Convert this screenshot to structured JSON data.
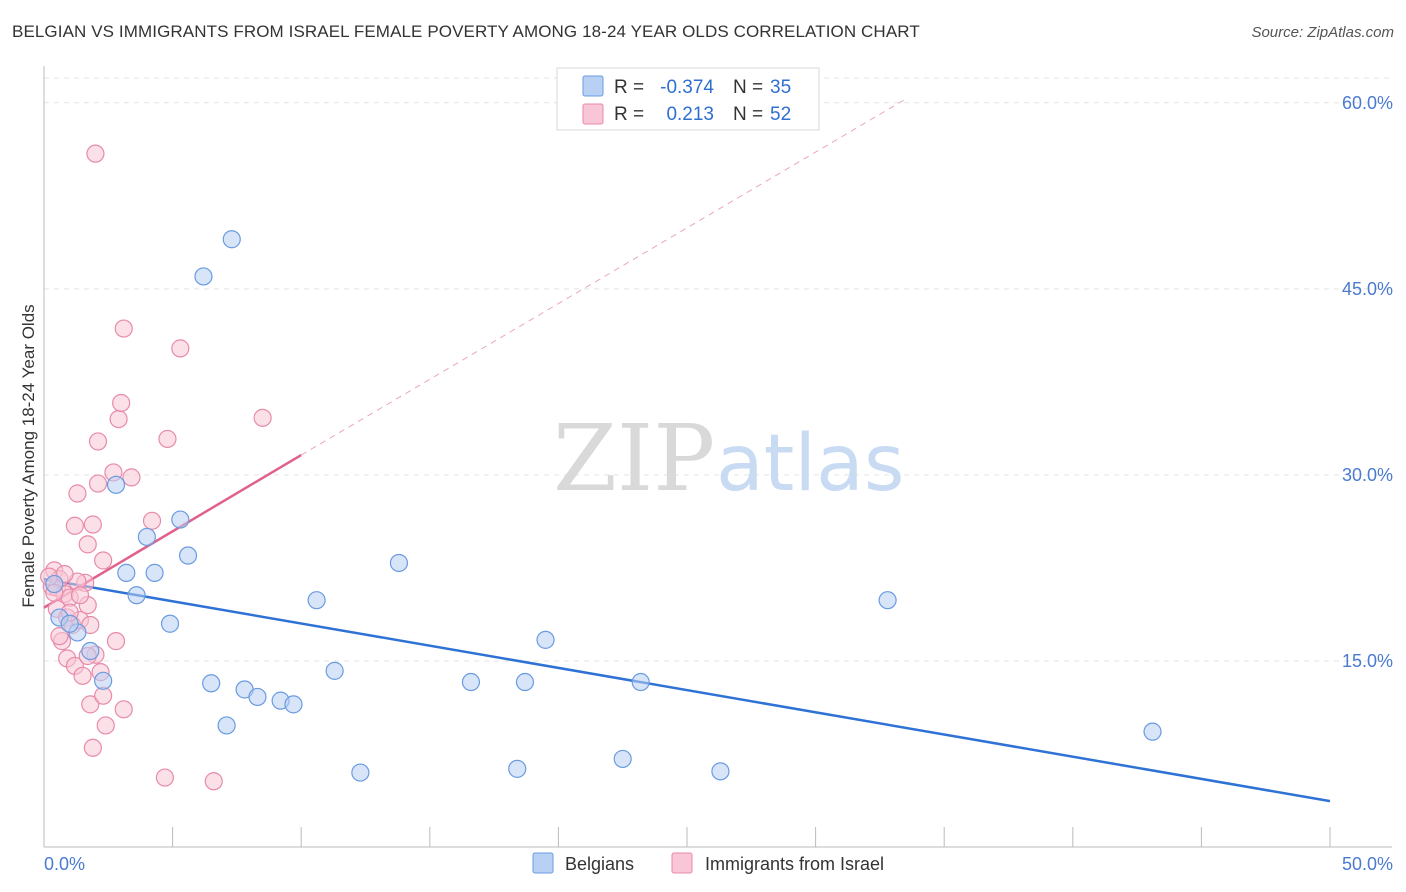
{
  "title": "BELGIAN VS IMMIGRANTS FROM ISRAEL FEMALE POVERTY AMONG 18-24 YEAR OLDS CORRELATION CHART",
  "source": "Source: ZipAtlas.com",
  "watermark": {
    "zip": "ZIP",
    "atlas": "atlas"
  },
  "colors": {
    "belgians_fill": "#b8d0f3",
    "belgians_stroke": "#6a9be0",
    "belgians_line": "#2f72d6",
    "israel_fill": "#f8c6d6",
    "israel_stroke": "#e88aaa",
    "israel_line": "#e0608e",
    "tick_text": "#4a7bd0"
  },
  "legend": {
    "rows": [
      {
        "r_label": "R =",
        "r_value": "-0.374",
        "n_label": "N =",
        "n_value": "35"
      },
      {
        "r_label": "R =",
        "r_value": "0.213",
        "n_label": "N =",
        "n_value": "52"
      }
    ]
  },
  "bottom_legend": [
    "Belgians",
    "Immigrants from Israel"
  ],
  "chart_data": {
    "type": "scatter",
    "title": "BELGIAN VS IMMIGRANTS FROM ISRAEL FEMALE POVERTY AMONG 18-24 YEAR OLDS CORRELATION CHART",
    "xlabel": "",
    "ylabel": "Female Poverty Among 18-24 Year Olds",
    "xlim": [
      0,
      50
    ],
    "ylim": [
      0,
      62
    ],
    "x_tick_labels": [
      "0.0%",
      "50.0%"
    ],
    "y_ticks": [
      15,
      30,
      45,
      60
    ],
    "y_tick_labels": [
      "15.0%",
      "30.0%",
      "45.0%",
      "60.0%"
    ],
    "grid": true,
    "series": [
      {
        "name": "Belgians",
        "points": [
          [
            0.4,
            21.2
          ],
          [
            0.6,
            18.5
          ],
          [
            1.3,
            17.3
          ],
          [
            1.8,
            15.8
          ],
          [
            2.3,
            13.4
          ],
          [
            2.8,
            29.2
          ],
          [
            3.2,
            22.1
          ],
          [
            3.6,
            20.3
          ],
          [
            4.0,
            25.0
          ],
          [
            4.3,
            22.1
          ],
          [
            4.9,
            18.0
          ],
          [
            5.3,
            26.4
          ],
          [
            5.6,
            23.5
          ],
          [
            6.2,
            46.0
          ],
          [
            6.5,
            13.2
          ],
          [
            7.1,
            9.8
          ],
          [
            7.3,
            49.0
          ],
          [
            7.8,
            12.7
          ],
          [
            8.3,
            12.1
          ],
          [
            9.2,
            11.8
          ],
          [
            9.7,
            11.5
          ],
          [
            10.6,
            19.9
          ],
          [
            11.3,
            14.2
          ],
          [
            12.3,
            6.0
          ],
          [
            13.8,
            22.9
          ],
          [
            16.6,
            13.3
          ],
          [
            18.4,
            6.3
          ],
          [
            18.7,
            13.3
          ],
          [
            19.5,
            16.7
          ],
          [
            22.5,
            7.1
          ],
          [
            23.2,
            13.3
          ],
          [
            26.3,
            6.1
          ],
          [
            32.8,
            19.9
          ],
          [
            43.1,
            9.3
          ],
          [
            1.0,
            18.0
          ]
        ]
      },
      {
        "name": "Immigrants from Israel",
        "points": [
          [
            0.3,
            21.0
          ],
          [
            0.4,
            22.3
          ],
          [
            0.5,
            20.9
          ],
          [
            0.5,
            19.2
          ],
          [
            0.6,
            21.6
          ],
          [
            0.7,
            16.6
          ],
          [
            0.8,
            20.4
          ],
          [
            0.9,
            15.2
          ],
          [
            0.9,
            18.5
          ],
          [
            1.0,
            20.1
          ],
          [
            1.1,
            17.9
          ],
          [
            1.2,
            25.9
          ],
          [
            1.2,
            14.6
          ],
          [
            1.3,
            28.5
          ],
          [
            1.4,
            18.3
          ],
          [
            1.5,
            13.8
          ],
          [
            1.6,
            21.3
          ],
          [
            1.7,
            19.5
          ],
          [
            1.7,
            24.4
          ],
          [
            1.8,
            11.5
          ],
          [
            1.8,
            17.9
          ],
          [
            1.9,
            8.0
          ],
          [
            1.9,
            26.0
          ],
          [
            2.0,
            15.5
          ],
          [
            2.1,
            29.3
          ],
          [
            2.1,
            32.7
          ],
          [
            2.2,
            14.1
          ],
          [
            2.3,
            23.1
          ],
          [
            2.3,
            12.2
          ],
          [
            2.4,
            9.8
          ],
          [
            2.7,
            30.2
          ],
          [
            2.8,
            16.6
          ],
          [
            2.9,
            34.5
          ],
          [
            3.0,
            35.8
          ],
          [
            3.1,
            41.8
          ],
          [
            3.1,
            11.1
          ],
          [
            3.4,
            29.8
          ],
          [
            4.2,
            26.3
          ],
          [
            4.7,
            5.6
          ],
          [
            4.8,
            32.9
          ],
          [
            5.3,
            40.2
          ],
          [
            6.6,
            5.3
          ],
          [
            8.5,
            34.6
          ],
          [
            0.4,
            20.5
          ],
          [
            0.6,
            17.0
          ],
          [
            1.0,
            18.9
          ],
          [
            1.3,
            21.4
          ],
          [
            0.2,
            21.8
          ],
          [
            2.0,
            55.9
          ],
          [
            1.7,
            15.4
          ],
          [
            0.8,
            22.0
          ],
          [
            1.4,
            20.3
          ]
        ]
      }
    ],
    "trend_lines": [
      {
        "series": "Belgians",
        "from": [
          0,
          21.6
        ],
        "to": [
          50,
          3.7
        ],
        "style": "solid"
      },
      {
        "series": "Immigrants from Israel",
        "from": [
          0,
          19.3
        ],
        "to": [
          10,
          31.6
        ],
        "style": "solid"
      },
      {
        "series": "Immigrants from Israel",
        "from": [
          10,
          31.6
        ],
        "to": [
          33.5,
          60.3
        ],
        "style": "dashed"
      }
    ]
  }
}
